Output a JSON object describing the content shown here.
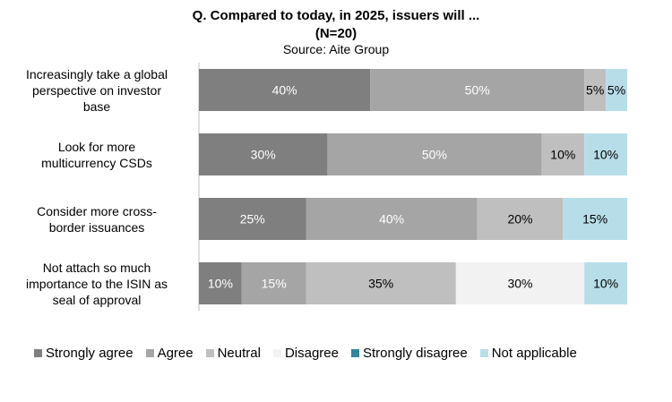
{
  "chart_data": {
    "type": "bar",
    "orientation": "horizontal",
    "stacked": true,
    "title": "Q. Compared to today, in 2025, issuers will ...",
    "subtitle": "(N=20)",
    "source": "Source: Aite Group",
    "categories": [
      "Increasingly take a global perspective on investor base",
      "Look for more multicurrency CSDs",
      "Consider more cross-border issuances",
      "Not attach so much importance to the ISIN as seal of approval"
    ],
    "category_lines": [
      [
        "Increasingly take a global",
        "perspective on investor",
        "base"
      ],
      [
        "Look for more",
        "multicurrency CSDs"
      ],
      [
        "Consider more cross-",
        "border issuances"
      ],
      [
        "Not attach so much",
        "importance to the ISIN as",
        "seal of approval"
      ]
    ],
    "series": [
      {
        "name": "Strongly agree",
        "color": "#7f7f7f",
        "label_color": "#ffffff",
        "values": [
          40,
          30,
          25,
          10
        ]
      },
      {
        "name": "Agree",
        "color": "#a5a5a5",
        "label_color": "#ffffff",
        "values": [
          50,
          50,
          40,
          15
        ]
      },
      {
        "name": "Neutral",
        "color": "#bfbfbf",
        "label_color": "#000000",
        "values": [
          5,
          10,
          20,
          35
        ]
      },
      {
        "name": "Disagree",
        "color": "#f2f2f2",
        "label_color": "#000000",
        "values": [
          0,
          0,
          0,
          30
        ]
      },
      {
        "name": "Strongly disagree",
        "color": "#31859c",
        "label_color": "#ffffff",
        "values": [
          0,
          0,
          0,
          0
        ]
      },
      {
        "name": "Not applicable",
        "color": "#b7dee8",
        "label_color": "#000000",
        "values": [
          5,
          10,
          15,
          10
        ]
      }
    ],
    "xlim": [
      0,
      100
    ],
    "value_suffix": "%",
    "legend_position": "bottom"
  }
}
